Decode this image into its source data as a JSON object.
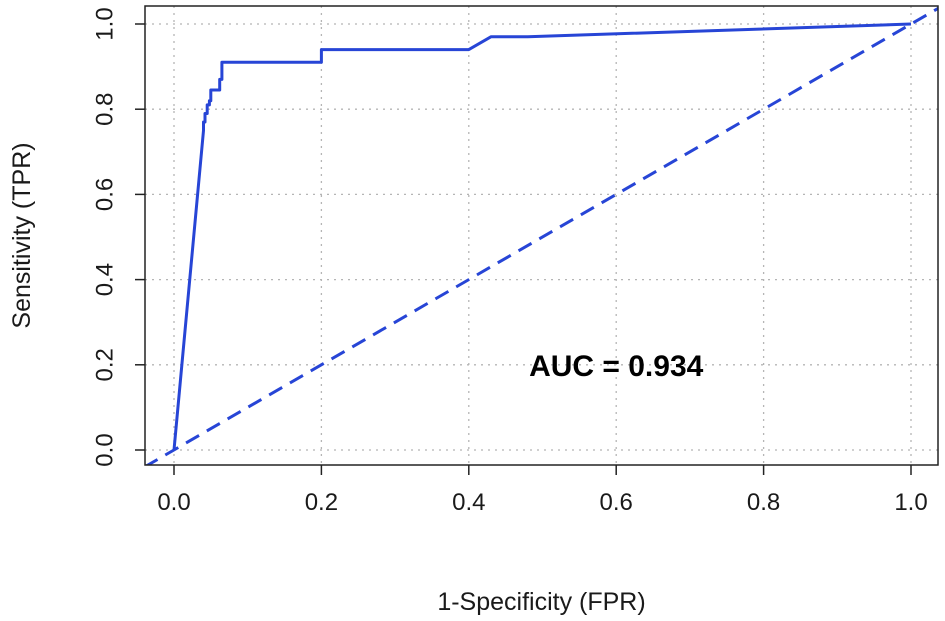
{
  "chart_data": {
    "type": "line",
    "xlabel": "1-Specificity (FPR)",
    "ylabel": "Sensitivity (TPR)",
    "xlim": [
      0,
      1
    ],
    "ylim": [
      0,
      1
    ],
    "xticks": [
      "0.0",
      "0.2",
      "0.4",
      "0.6",
      "0.8",
      "1.0"
    ],
    "yticks": [
      "0.0",
      "0.2",
      "0.4",
      "0.6",
      "0.8",
      "1.0"
    ],
    "grid": true,
    "annotation": "AUC = 0.934",
    "color": "#2745d6",
    "series": [
      {
        "style": "solid",
        "x": [
          0,
          0.04,
          0.04,
          0.042,
          0.042,
          0.045,
          0.045,
          0.048,
          0.048,
          0.05,
          0.05,
          0.062,
          0.062,
          0.065,
          0.065,
          0.2,
          0.2,
          0.4,
          0.43,
          0.48,
          1.0
        ],
        "y": [
          0,
          0.75,
          0.77,
          0.77,
          0.79,
          0.79,
          0.81,
          0.81,
          0.82,
          0.82,
          0.845,
          0.845,
          0.87,
          0.87,
          0.91,
          0.91,
          0.94,
          0.94,
          0.97,
          0.97,
          1.0
        ]
      },
      {
        "style": "dashed",
        "x": [
          -0.04,
          1.04
        ],
        "y": [
          -0.04,
          1.04
        ]
      }
    ]
  }
}
